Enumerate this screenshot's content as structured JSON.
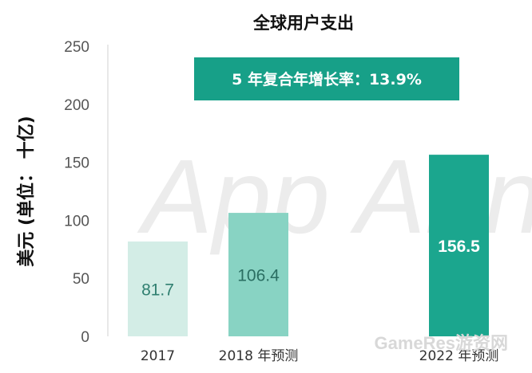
{
  "chart_data": {
    "type": "bar",
    "title": "全球用户支出",
    "ylabel": "美元 (单位： 十亿)",
    "xlabel": "",
    "categories": [
      "2017",
      "2018 年预测",
      "2022 年预测"
    ],
    "values": [
      81.7,
      106.4,
      156.5
    ],
    "value_labels": [
      "81.7",
      "106.4",
      "156.5"
    ],
    "ylim": [
      0,
      250
    ],
    "yticks": [
      0,
      50,
      100,
      150,
      200,
      250
    ],
    "grid": false,
    "colors": [
      "#d3ede6",
      "#88d3c3",
      "#1ba68e"
    ],
    "label_colors": [
      "#2f7f70",
      "#2a6e62",
      "#ffffff"
    ],
    "annotation": "5 年复合年增长率：13.9%",
    "annotation_color": "#17a088"
  },
  "watermark": "App Annie",
  "site_watermark": "GameRes游资网"
}
